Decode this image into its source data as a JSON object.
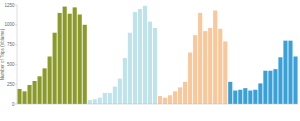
{
  "chart_data": {
    "type": "bar",
    "y_label": "Number of Trips (Volume)",
    "categories": [
      null,
      null,
      null,
      null,
      null,
      null,
      null,
      null,
      null,
      null,
      null,
      null,
      null,
      null,
      null,
      null,
      null,
      null,
      null,
      null,
      null,
      null,
      null,
      null,
      null,
      null,
      null,
      null,
      null,
      null,
      null,
      null,
      null,
      null,
      null,
      null,
      null,
      null,
      null,
      null,
      null,
      null,
      null,
      null,
      null,
      null,
      null,
      null,
      null,
      null,
      null,
      null,
      null,
      null,
      null,
      null
    ],
    "values": [
      190,
      160,
      240,
      290,
      350,
      450,
      600,
      900,
      1150,
      1230,
      1140,
      1220,
      1130,
      1000,
      50,
      60,
      80,
      140,
      140,
      220,
      320,
      580,
      900,
      1160,
      1200,
      1240,
      1040,
      960,
      100,
      80,
      110,
      160,
      210,
      280,
      650,
      870,
      1150,
      920,
      960,
      1180,
      950,
      790,
      280,
      170,
      180,
      200,
      170,
      180,
      260,
      420,
      420,
      440,
      590,
      800,
      800,
      600
    ],
    "colors": [
      "#8b9a2a",
      "#8b9a2a",
      "#8b9a2a",
      "#8b9a2a",
      "#8b9a2a",
      "#8b9a2a",
      "#8b9a2a",
      "#8b9a2a",
      "#8b9a2a",
      "#8b9a2a",
      "#8b9a2a",
      "#8b9a2a",
      "#8b9a2a",
      "#8b9a2a",
      "#bfe3ea",
      "#bfe3ea",
      "#bfe3ea",
      "#bfe3ea",
      "#bfe3ea",
      "#bfe3ea",
      "#bfe3ea",
      "#bfe3ea",
      "#bfe3ea",
      "#bfe3ea",
      "#bfe3ea",
      "#bfe3ea",
      "#bfe3ea",
      "#bfe3ea",
      "#f9c79a",
      "#f9c79a",
      "#f9c79a",
      "#f9c79a",
      "#f9c79a",
      "#f9c79a",
      "#f9c79a",
      "#f9c79a",
      "#f9c79a",
      "#f9c79a",
      "#f9c79a",
      "#f9c79a",
      "#f9c79a",
      "#f9c79a",
      "#3aa0d8",
      "#3aa0d8",
      "#3aa0d8",
      "#3aa0d8",
      "#3aa0d8",
      "#3aa0d8",
      "#3aa0d8",
      "#3aa0d8",
      "#3aa0d8",
      "#3aa0d8",
      "#3aa0d8",
      "#3aa0d8",
      "#3aa0d8",
      "#3aa0d8"
    ],
    "ylim": [
      0,
      1250
    ],
    "yticks": [
      0,
      250,
      500,
      750,
      1000,
      1250
    ],
    "grid": false,
    "tick_labels": "y"
  }
}
